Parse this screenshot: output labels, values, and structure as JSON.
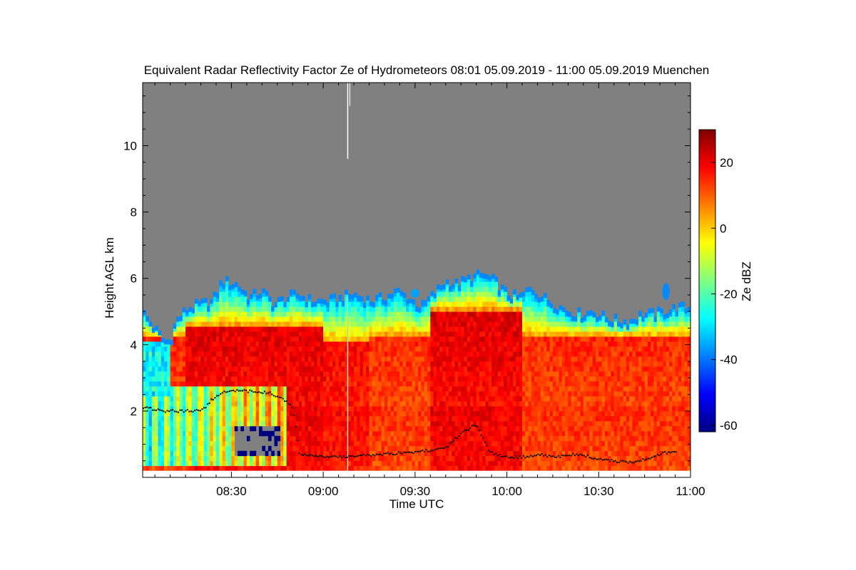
{
  "chart_data": {
    "type": "heatmap",
    "title": "Equivalent Radar Reflectivity Factor Ze of Hydrometeors   08:01 05.09.2019 - 11:00 05.09.2019 Muenchen",
    "xlabel": "Time UTC",
    "ylabel": "Height AGL km",
    "colorbar_label": "Ze dBZ",
    "x_ticks": [
      "08:30",
      "09:00",
      "09:30",
      "10:00",
      "10:30",
      "11:00"
    ],
    "x_tick_minutes": [
      30,
      60,
      90,
      120,
      150,
      180
    ],
    "xlim_minutes": [
      1,
      180
    ],
    "y_ticks": [
      2,
      4,
      6,
      8,
      10
    ],
    "ylim": [
      0,
      11.9
    ],
    "colorbar_ticks": [
      20,
      0,
      -20,
      -40,
      -60
    ],
    "colorbar_range": [
      -62,
      30
    ],
    "background_color": "#808080",
    "colormap": [
      "#00007f",
      "#0000ff",
      "#007fff",
      "#00ffff",
      "#7fff7f",
      "#ffff00",
      "#ff7f00",
      "#ff0000",
      "#7f0000"
    ],
    "echo_top_km": [
      [
        0,
        5.0
      ],
      [
        8,
        4.0
      ],
      [
        10,
        4.0
      ],
      [
        12,
        4.6
      ],
      [
        16,
        5.0
      ],
      [
        20,
        5.1
      ],
      [
        24,
        5.2
      ],
      [
        27,
        5.8
      ],
      [
        32,
        5.7
      ],
      [
        36,
        5.3
      ],
      [
        40,
        5.5
      ],
      [
        44,
        5.1
      ],
      [
        48,
        5.3
      ],
      [
        52,
        5.4
      ],
      [
        56,
        5.2
      ],
      [
        62,
        5.2
      ],
      [
        66,
        5.3
      ],
      [
        70,
        5.4
      ],
      [
        76,
        5.2
      ],
      [
        80,
        5.3
      ],
      [
        84,
        5.5
      ],
      [
        88,
        5.3
      ],
      [
        92,
        5.0
      ],
      [
        96,
        5.4
      ],
      [
        100,
        5.8
      ],
      [
        104,
        5.7
      ],
      [
        108,
        5.9
      ],
      [
        112,
        6.0
      ],
      [
        116,
        5.8
      ],
      [
        120,
        5.4
      ],
      [
        124,
        5.3
      ],
      [
        128,
        5.6
      ],
      [
        132,
        5.3
      ],
      [
        136,
        5.1
      ],
      [
        140,
        4.9
      ],
      [
        144,
        4.8
      ],
      [
        148,
        4.9
      ],
      [
        152,
        4.7
      ],
      [
        156,
        4.6
      ],
      [
        160,
        4.6
      ],
      [
        164,
        4.8
      ],
      [
        168,
        4.8
      ],
      [
        172,
        4.9
      ],
      [
        176,
        5.0
      ],
      [
        180,
        5.0
      ]
    ],
    "precip_core_segments": [
      {
        "start_min": 15,
        "end_min": 60,
        "top_km": 4.5,
        "peak_dbz": 22
      },
      {
        "start_min": 60,
        "end_min": 75,
        "top_km": 4.0,
        "peak_dbz": 20
      },
      {
        "start_min": 95,
        "end_min": 125,
        "top_km": 5.0,
        "peak_dbz": 22
      },
      {
        "start_min": 125,
        "end_min": 180,
        "top_km": 4.2,
        "peak_dbz": 16
      }
    ],
    "cloud_base_km": [
      [
        1,
        2.1
      ],
      [
        8,
        2.0
      ],
      [
        15,
        2.0
      ],
      [
        20,
        2.0
      ],
      [
        24,
        2.4
      ],
      [
        28,
        2.6
      ],
      [
        35,
        2.6
      ],
      [
        42,
        2.55
      ],
      [
        48,
        2.3
      ],
      [
        50,
        2.05
      ],
      [
        52,
        0.7
      ],
      [
        60,
        0.6
      ],
      [
        70,
        0.65
      ],
      [
        80,
        0.7
      ],
      [
        88,
        0.75
      ],
      [
        94,
        0.8
      ],
      [
        100,
        0.9
      ],
      [
        106,
        1.4
      ],
      [
        110,
        1.6
      ],
      [
        114,
        0.75
      ],
      [
        120,
        0.6
      ],
      [
        124,
        0.6
      ],
      [
        130,
        0.7
      ],
      [
        136,
        0.6
      ],
      [
        142,
        0.7
      ],
      [
        148,
        0.6
      ],
      [
        154,
        0.5
      ],
      [
        160,
        0.45
      ],
      [
        166,
        0.55
      ],
      [
        170,
        0.7
      ],
      [
        174,
        0.8
      ]
    ],
    "spike_minute": 68
  }
}
